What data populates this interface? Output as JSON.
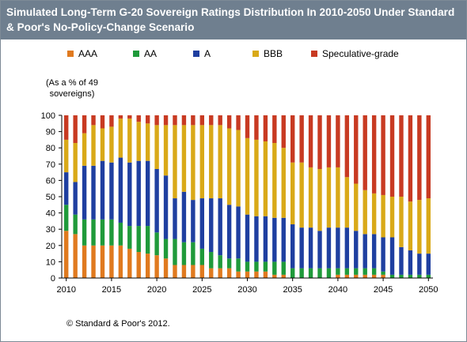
{
  "header": {
    "title": "Simulated Long-Term G-20 Sovereign Ratings Distribution In 2010-2050 Under Standard & Poor's No-Policy-Change Scenario"
  },
  "unit_note": "(As a % of 49 sovereigns)",
  "footnote": "© Standard & Poor's 2012.",
  "chart_data": {
    "type": "bar",
    "stacked": true,
    "title": "Simulated Long-Term G-20 Sovereign Ratings Distribution In 2010-2050 Under Standard & Poor's No-Policy-Change Scenario",
    "xlabel": "",
    "ylabel": "(As a % of 49 sovereigns)",
    "ylim": [
      0,
      100
    ],
    "yticks": [
      0,
      10,
      20,
      30,
      40,
      50,
      60,
      70,
      80,
      90,
      100
    ],
    "xticks": [
      2010,
      2015,
      2020,
      2025,
      2030,
      2035,
      2040,
      2045,
      2050
    ],
    "legend_position": "top",
    "grid": false,
    "categories": [
      2010,
      2011,
      2012,
      2013,
      2014,
      2015,
      2016,
      2017,
      2018,
      2019,
      2020,
      2021,
      2022,
      2023,
      2024,
      2025,
      2026,
      2027,
      2028,
      2029,
      2030,
      2031,
      2032,
      2033,
      2034,
      2035,
      2036,
      2037,
      2038,
      2039,
      2040,
      2041,
      2042,
      2043,
      2044,
      2045,
      2046,
      2047,
      2048,
      2049,
      2050
    ],
    "series": [
      {
        "name": "AAA",
        "color": "#e07a1f",
        "values": [
          29,
          27,
          20,
          20,
          20,
          20,
          20,
          18,
          16,
          15,
          14,
          12,
          8,
          8,
          8,
          8,
          6,
          6,
          6,
          4,
          4,
          4,
          4,
          2,
          2,
          0,
          0,
          0,
          0,
          0,
          2,
          2,
          2,
          2,
          2,
          2,
          0,
          0,
          0,
          0,
          0
        ]
      },
      {
        "name": "AA",
        "color": "#1f9a3a",
        "values": [
          16,
          12,
          16,
          16,
          16,
          16,
          14,
          14,
          16,
          17,
          14,
          12,
          16,
          14,
          14,
          10,
          10,
          8,
          6,
          8,
          6,
          6,
          6,
          8,
          8,
          6,
          6,
          6,
          6,
          6,
          4,
          4,
          4,
          4,
          4,
          2,
          2,
          2,
          2,
          2,
          2
        ]
      },
      {
        "name": "A",
        "color": "#1f3fa0",
        "values": [
          20,
          20,
          33,
          33,
          36,
          35,
          40,
          39,
          40,
          40,
          39,
          39,
          25,
          31,
          26,
          31,
          33,
          35,
          33,
          32,
          29,
          28,
          28,
          27,
          27,
          27,
          25,
          25,
          23,
          25,
          25,
          25,
          23,
          21,
          21,
          21,
          23,
          17,
          15,
          13,
          13
        ]
      },
      {
        "name": "BBB",
        "color": "#d9a918",
        "values": [
          20,
          24,
          20,
          25,
          20,
          22,
          24,
          27,
          24,
          23,
          27,
          31,
          45,
          41,
          46,
          45,
          45,
          45,
          47,
          47,
          47,
          47,
          46,
          46,
          43,
          38,
          40,
          37,
          38,
          37,
          37,
          31,
          29,
          27,
          25,
          26,
          25,
          31,
          30,
          33,
          34
        ]
      },
      {
        "name": "Speculative-grade",
        "color": "#c83a22",
        "values": [
          15,
          17,
          11,
          6,
          8,
          7,
          2,
          2,
          4,
          5,
          6,
          6,
          6,
          6,
          6,
          6,
          6,
          6,
          8,
          9,
          14,
          15,
          16,
          17,
          20,
          29,
          29,
          32,
          33,
          32,
          32,
          38,
          42,
          46,
          48,
          49,
          50,
          50,
          53,
          52,
          51
        ]
      }
    ]
  }
}
